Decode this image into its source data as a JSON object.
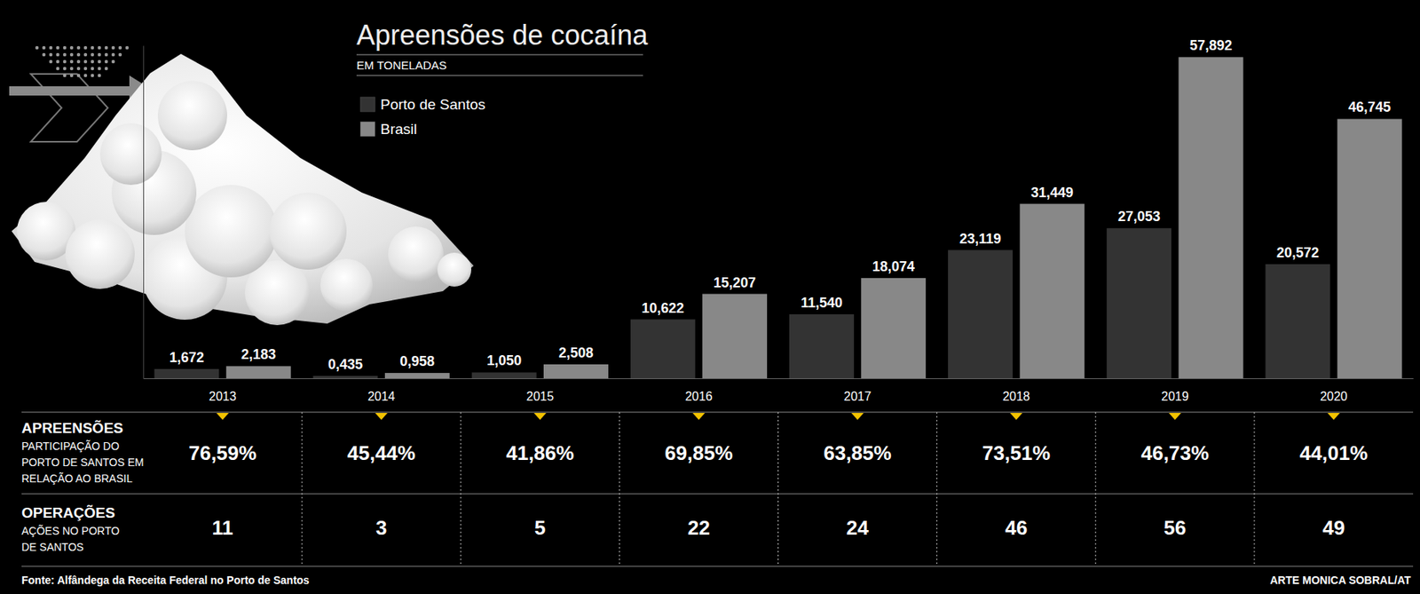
{
  "chart_data": {
    "type": "bar",
    "title": "Apreensões de cocaína",
    "subtitle": "EM TONELADAS",
    "categories": [
      "2013",
      "2014",
      "2015",
      "2016",
      "2017",
      "2018",
      "2019",
      "2020"
    ],
    "series": [
      {
        "name": "Porto de Santos",
        "color": "#333333",
        "values": [
          1.672,
          0.435,
          1.05,
          10.622,
          11.54,
          23.119,
          27.053,
          20.572
        ],
        "value_labels": [
          "1,672",
          "0,435",
          "1,050",
          "10,622",
          "11,540",
          "23,119",
          "27,053",
          "20,572"
        ]
      },
      {
        "name": "Brasil",
        "color": "#888888",
        "values": [
          2.183,
          0.958,
          2.508,
          15.207,
          18.074,
          31.449,
          57.892,
          46.745
        ],
        "value_labels": [
          "2,183",
          "0,958",
          "2,508",
          "15,207",
          "18,074",
          "31,449",
          "57,892",
          "46,745"
        ]
      }
    ],
    "ylim": [
      0,
      60
    ],
    "grid": false,
    "legend": "top-left",
    "data_labels": true,
    "tick_labels": "x",
    "share": {
      "title": "APREENSÕES",
      "label": "PARTICIPAÇÃO DO PORTO DE SANTOS EM RELAÇÃO AO BRASIL",
      "values": [
        76.59,
        45.44,
        41.86,
        69.85,
        63.85,
        73.51,
        46.73,
        44.01
      ],
      "value_labels": [
        "76,59%",
        "45,44%",
        "41,86%",
        "69,85%",
        "63,85%",
        "73,51%",
        "46,73%",
        "44,01%"
      ]
    },
    "operations": {
      "title": "OPERAÇÕES",
      "label": "AÇÕES NO PORTO DE SANTOS",
      "values": [
        11,
        3,
        5,
        22,
        24,
        46,
        56,
        49
      ]
    },
    "source": "Fonte: Alfândega da Receita Federal no Porto de Santos",
    "credit": "ARTE MONICA SOBRAL/AT"
  }
}
